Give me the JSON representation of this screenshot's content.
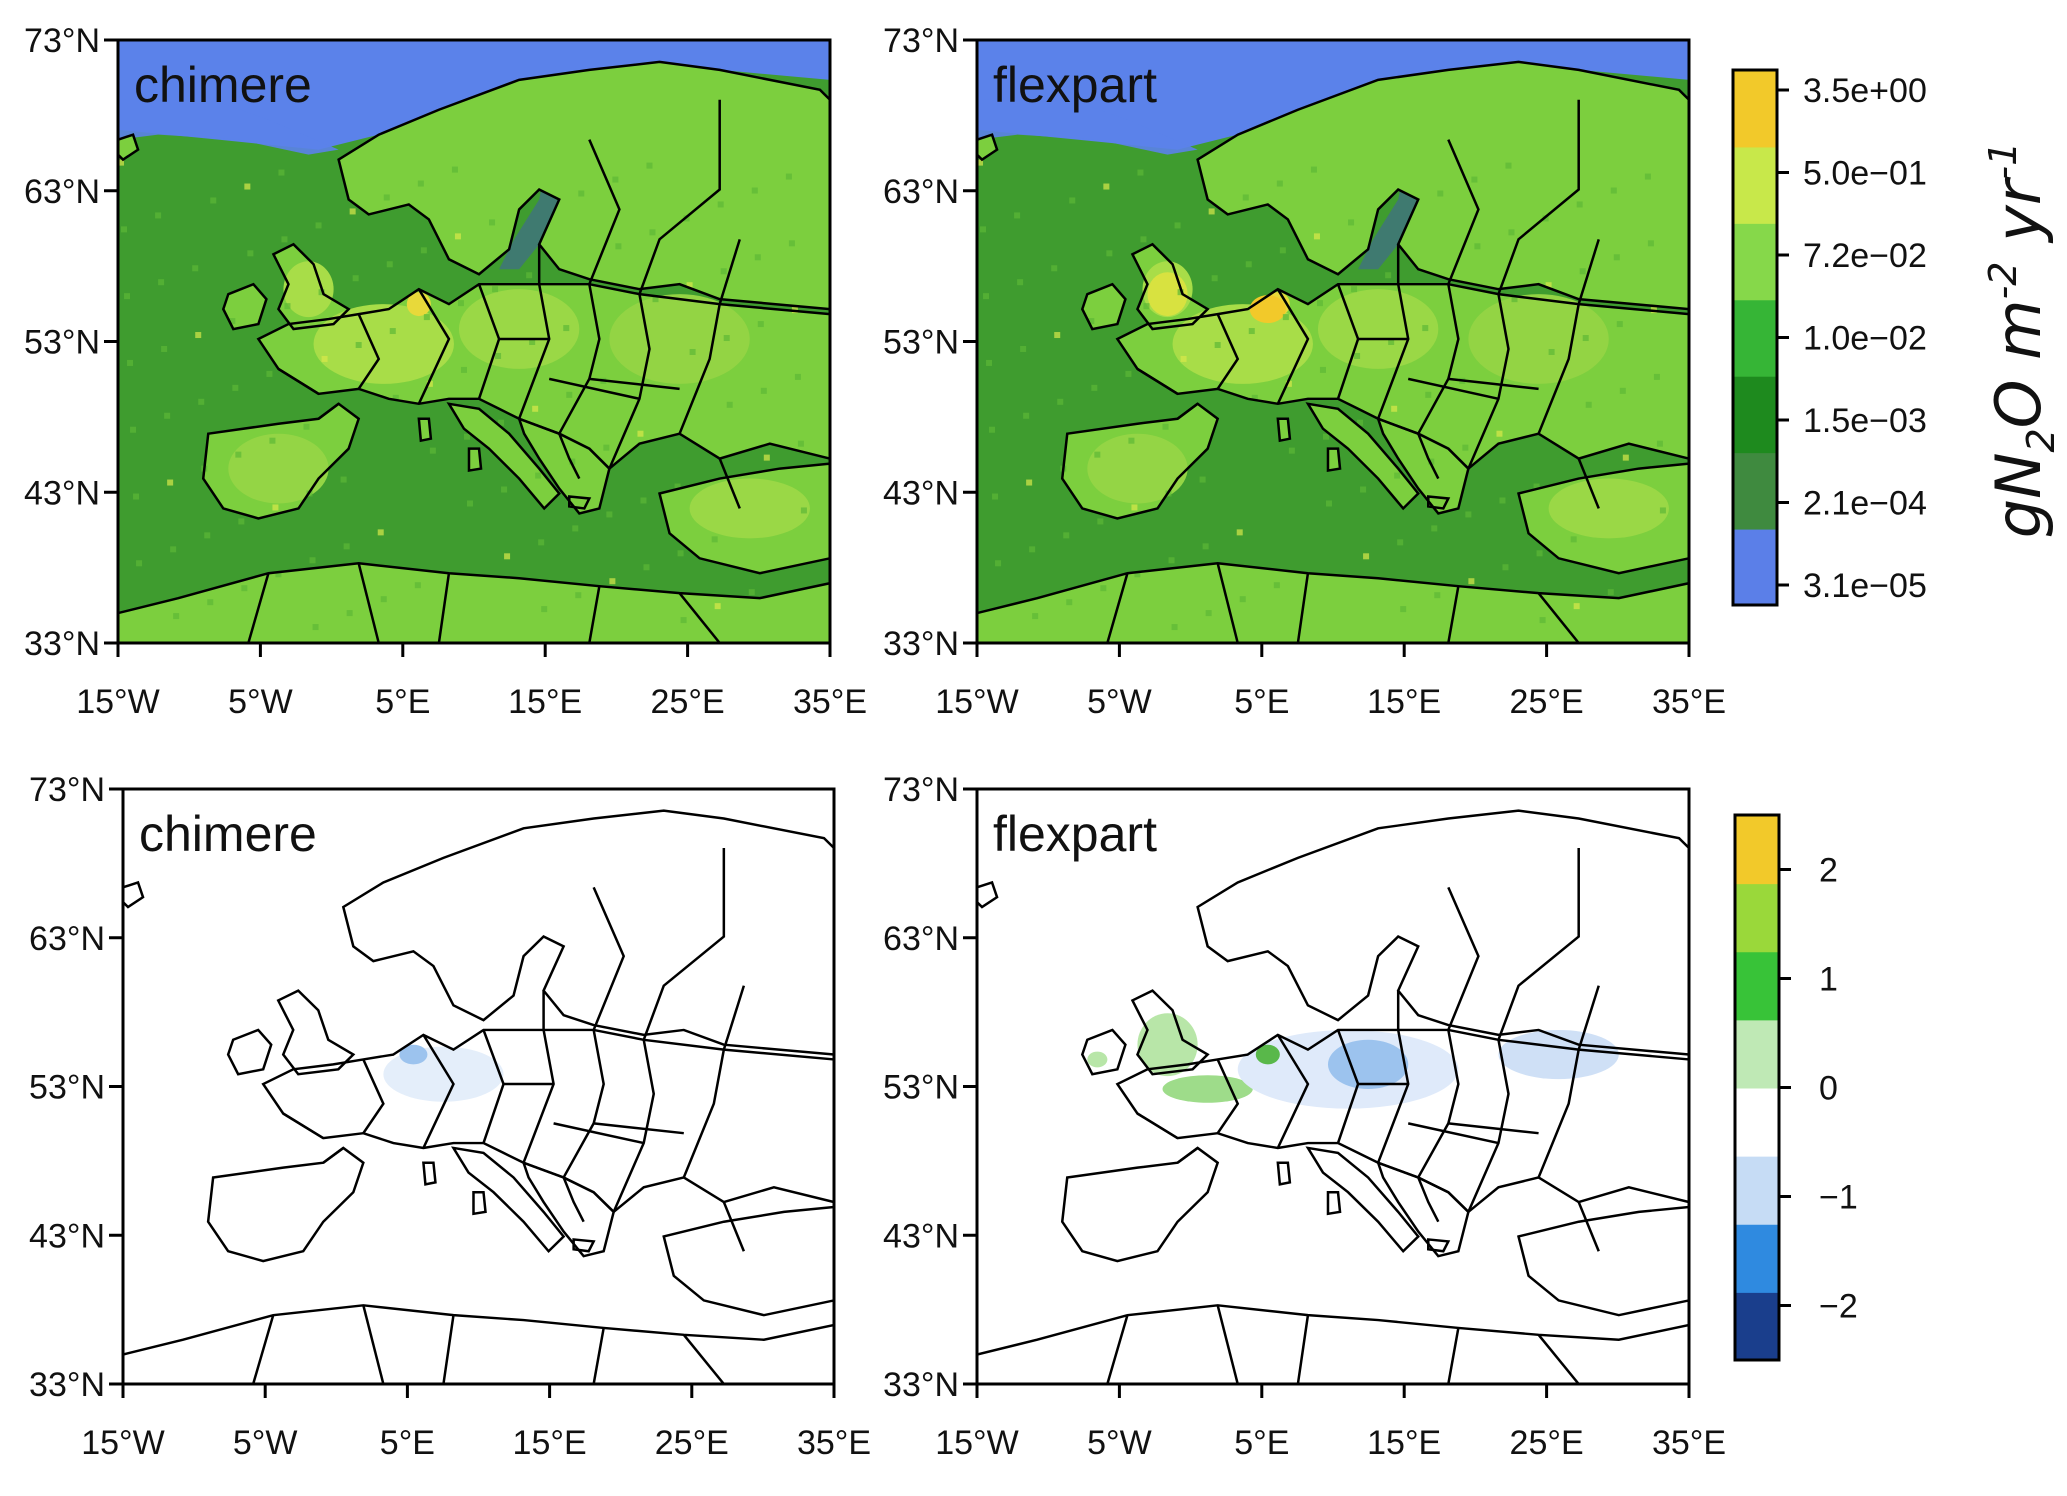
{
  "panels": [
    {
      "title": "chimere",
      "row": 0,
      "col": 0,
      "variant": "emissions"
    },
    {
      "title": "flexpart",
      "row": 0,
      "col": 1,
      "variant": "emissions"
    },
    {
      "title": "chimere",
      "row": 1,
      "col": 0,
      "variant": "difference"
    },
    {
      "title": "flexpart",
      "row": 1,
      "col": 1,
      "variant": "difference"
    }
  ],
  "axes": {
    "lat_range": [
      33,
      73
    ],
    "lon_range": [
      -15,
      35
    ],
    "lat_ticks": [
      "73°N",
      "63°N",
      "53°N",
      "43°N",
      "33°N"
    ],
    "lon_ticks": [
      "15°W",
      "5°W",
      "5°E",
      "15°E",
      "25°E",
      "35°E"
    ]
  },
  "colorbar_top": {
    "labels": [
      "3.5e+00",
      "5.0e−01",
      "7.2e−02",
      "1.0e−02",
      "1.5e−03",
      "2.1e−04",
      "3.1e−05"
    ],
    "scale": "log",
    "colors": [
      "#5b7fe8",
      "#3f8a3f",
      "#1e8a1e",
      "#36b536",
      "#86d84a",
      "#c8e84a",
      "#f2c92a"
    ],
    "unit_parts": [
      "gN",
      "2",
      "O m",
      "-2",
      " yr",
      "-1"
    ]
  },
  "colorbar_bottom": {
    "labels": [
      "2",
      "1",
      "0",
      "−1",
      "−2"
    ],
    "values": [
      2,
      1,
      0,
      -1,
      -2
    ],
    "range": [
      -2.5,
      2.5
    ],
    "colors": [
      "#1a3e8c",
      "#2f8ae0",
      "#c6dcf5",
      "#ffffff",
      "#bfe9b5",
      "#38c338",
      "#9ad83a",
      "#f2c92a"
    ]
  },
  "colors": {
    "sea_top": "#5b82ea",
    "land_low": "#3f9c2f",
    "land_high": "#a8dd48",
    "hotspot": "#e8d93a",
    "diff_blue": "#9cc3ee",
    "diff_green": "#b8e6a8"
  }
}
